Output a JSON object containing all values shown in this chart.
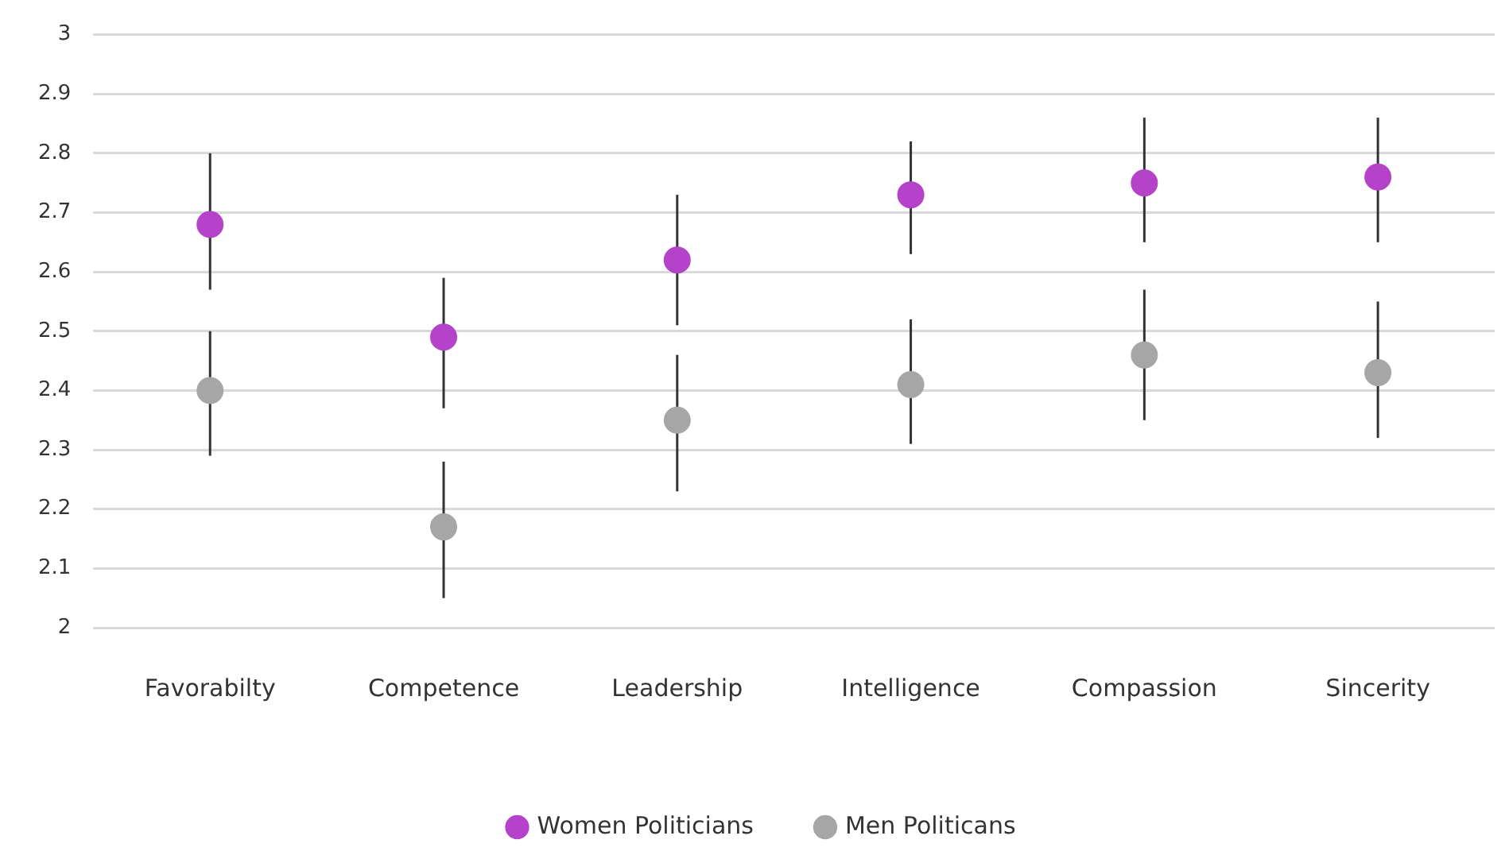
{
  "chart_data": {
    "type": "scatter",
    "categories": [
      "Favorabilty",
      "Competence",
      "Leadership",
      "Intelligence",
      "Compassion",
      "Sincerity"
    ],
    "series": [
      {
        "name": "Women Politicians",
        "color": "#b543c9",
        "values": [
          2.68,
          2.49,
          2.62,
          2.73,
          2.75,
          2.76
        ],
        "errors": [
          [
            2.57,
            2.8
          ],
          [
            2.37,
            2.59
          ],
          [
            2.51,
            2.73
          ],
          [
            2.63,
            2.82
          ],
          [
            2.65,
            2.86
          ],
          [
            2.65,
            2.86
          ]
        ]
      },
      {
        "name": "Men Politicans",
        "color": "#a6a6a6",
        "values": [
          2.4,
          2.17,
          2.35,
          2.41,
          2.46,
          2.43
        ],
        "errors": [
          [
            2.29,
            2.5
          ],
          [
            2.05,
            2.28
          ],
          [
            2.23,
            2.46
          ],
          [
            2.31,
            2.52
          ],
          [
            2.35,
            2.57
          ],
          [
            2.32,
            2.55
          ]
        ]
      }
    ],
    "ylim": [
      2,
      3
    ],
    "yticks": [
      2,
      2.1,
      2.2,
      2.3,
      2.4,
      2.5,
      2.6,
      2.7,
      2.8,
      2.9,
      3
    ],
    "grid": "y",
    "legend": "bottom",
    "marker": "circle"
  }
}
